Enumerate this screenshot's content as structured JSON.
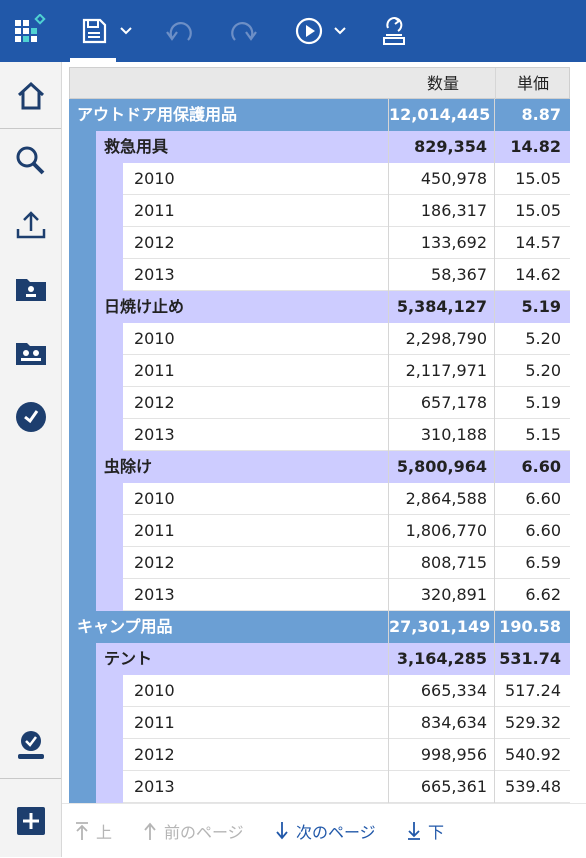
{
  "toolbar": {
    "icons": [
      "app-logo-icon",
      "save-icon",
      "chevron-down-icon",
      "undo-icon",
      "redo-icon",
      "run-icon",
      "chevron-down-icon",
      "export-icon"
    ]
  },
  "sidebar": {
    "icons": [
      "home-icon",
      "search-icon",
      "upload-icon",
      "my-content-icon",
      "team-content-icon",
      "recent-icon",
      "my-account-icon",
      "new-icon"
    ]
  },
  "table": {
    "headers": {
      "quantity": "数量",
      "unit_price": "単価"
    },
    "groups": [
      {
        "name": "アウトドア用保護用品",
        "quantity": "12,014,445",
        "price": "8.87",
        "subgroups": [
          {
            "name": "救急用具",
            "quantity": "829,354",
            "price": "14.82",
            "rows": [
              {
                "year": "2010",
                "quantity": "450,978",
                "price": "15.05"
              },
              {
                "year": "2011",
                "quantity": "186,317",
                "price": "15.05"
              },
              {
                "year": "2012",
                "quantity": "133,692",
                "price": "14.57"
              },
              {
                "year": "2013",
                "quantity": "58,367",
                "price": "14.62"
              }
            ]
          },
          {
            "name": "日焼け止め",
            "quantity": "5,384,127",
            "price": "5.19",
            "rows": [
              {
                "year": "2010",
                "quantity": "2,298,790",
                "price": "5.20"
              },
              {
                "year": "2011",
                "quantity": "2,117,971",
                "price": "5.20"
              },
              {
                "year": "2012",
                "quantity": "657,178",
                "price": "5.19"
              },
              {
                "year": "2013",
                "quantity": "310,188",
                "price": "5.15"
              }
            ]
          },
          {
            "name": "虫除け",
            "quantity": "5,800,964",
            "price": "6.60",
            "rows": [
              {
                "year": "2010",
                "quantity": "2,864,588",
                "price": "6.60"
              },
              {
                "year": "2011",
                "quantity": "1,806,770",
                "price": "6.60"
              },
              {
                "year": "2012",
                "quantity": "808,715",
                "price": "6.59"
              },
              {
                "year": "2013",
                "quantity": "320,891",
                "price": "6.62"
              }
            ]
          }
        ]
      },
      {
        "name": "キャンプ用品",
        "quantity": "27,301,149",
        "price": "190.58",
        "subgroups": [
          {
            "name": "テント",
            "quantity": "3,164,285",
            "price": "531.74",
            "rows": [
              {
                "year": "2010",
                "quantity": "665,334",
                "price": "517.24"
              },
              {
                "year": "2011",
                "quantity": "834,634",
                "price": "529.32"
              },
              {
                "year": "2012",
                "quantity": "998,956",
                "price": "540.92"
              },
              {
                "year": "2013",
                "quantity": "665,361",
                "price": "539.48"
              }
            ]
          }
        ]
      }
    ]
  },
  "pager": {
    "top": "上",
    "prev": "前のページ",
    "next": "次のページ",
    "bottom": "下",
    "colors": {
      "disabled": "#b5b5b5",
      "enabled": "#2158a9"
    }
  }
}
